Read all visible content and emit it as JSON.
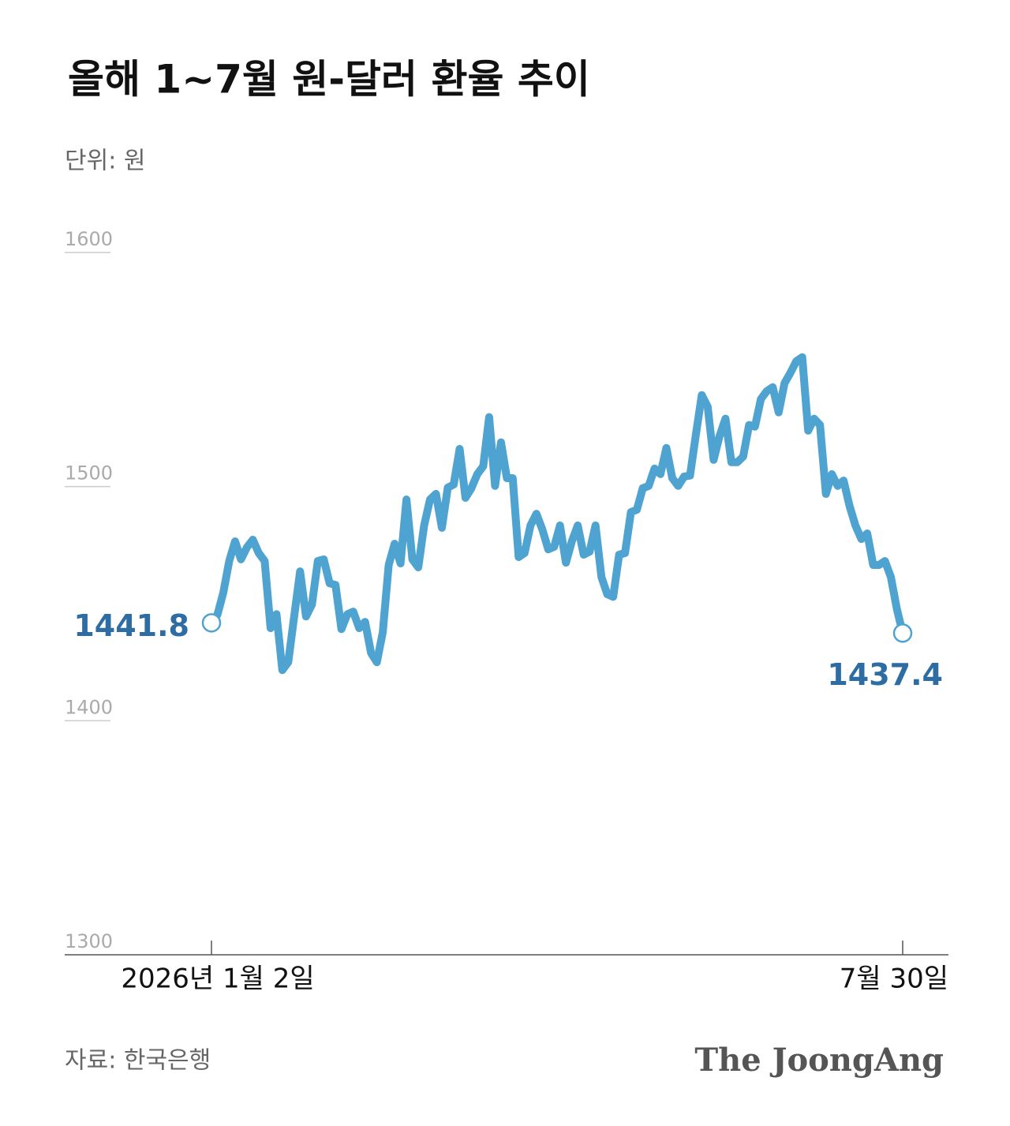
{
  "chart_data": {
    "type": "line",
    "title": "올해 1~7월 원-달러 환율 추이",
    "subtitle": "단위: 원",
    "source": "자료: 한국은행",
    "brand": "The JoongAng",
    "categories": [
      "2026년 1월 2일",
      null,
      null,
      null,
      null,
      null,
      null,
      null,
      null,
      null,
      null,
      null,
      null,
      null,
      null,
      null,
      null,
      null,
      null,
      null,
      null,
      null,
      null,
      null,
      null,
      null,
      null,
      null,
      null,
      null,
      null,
      null,
      null,
      null,
      null,
      null,
      null,
      null,
      null,
      null,
      null,
      null,
      null,
      null,
      null,
      null,
      null,
      null,
      null,
      null,
      null,
      null,
      null,
      null,
      null,
      null,
      null,
      null,
      null,
      null,
      null,
      null,
      null,
      null,
      null,
      null,
      null,
      null,
      null,
      null,
      null,
      null,
      null,
      null,
      null,
      null,
      null,
      null,
      null,
      null,
      null,
      null,
      null,
      null,
      null,
      null,
      null,
      null,
      null,
      null,
      null,
      null,
      null,
      null,
      null,
      null,
      null,
      null,
      null,
      null,
      null,
      null,
      null,
      null,
      null,
      null,
      null,
      null,
      null,
      null,
      null,
      null,
      null,
      null,
      null,
      null,
      null,
      "7월 30일"
    ],
    "series": [
      {
        "name": "원-달러 환율",
        "color": "#4fa3d1",
        "values": [
          1441.8,
          1445.2,
          1454.7,
          1468.2,
          1476.6,
          1468.9,
          1474,
          1477.3,
          1471.6,
          1468.2,
          1439.5,
          1445.5,
          1421.6,
          1425,
          1444.5,
          1463.8,
          1444.5,
          1449.6,
          1468.2,
          1468.9,
          1458.7,
          1458,
          1439.1,
          1445.5,
          1446.6,
          1439.5,
          1442.2,
          1429,
          1425,
          1437.8,
          1466.5,
          1475.6,
          1467.2,
          1494.5,
          1468.9,
          1465.5,
          1483.4,
          1494.5,
          1496.9,
          1482.4,
          1499.6,
          1500.9,
          1516.1,
          1495.2,
          1499.3,
          1505.3,
          1508.7,
          1529.7,
          1500.3,
          1518.9,
          1503.6,
          1503.6,
          1469.9,
          1471.6,
          1483.4,
          1488.4,
          1481.7,
          1473.2,
          1474.3,
          1483.4,
          1467.5,
          1476.6,
          1483.4,
          1470.9,
          1472.2,
          1483.4,
          1461.4,
          1454,
          1452.9,
          1470.9,
          1471.6,
          1489.1,
          1490.1,
          1499.3,
          1500.3,
          1507.7,
          1505.3,
          1516.5,
          1503.6,
          1500.3,
          1504.3,
          1504.7,
          1522.2,
          1539.1,
          1534.1,
          1511.4,
          1521.6,
          1529,
          1510.4,
          1510.4,
          1512.8,
          1526.3,
          1525.6,
          1537.4,
          1540.8,
          1542.5,
          1531.7,
          1544.2,
          1548.6,
          1553.6,
          1555.3,
          1523.9,
          1529,
          1526.3,
          1496.9,
          1505.3,
          1500.3,
          1502.6,
          1491.8,
          1483.4,
          1477.6,
          1480,
          1466.5,
          1466.5,
          1468.2,
          1461.4,
          1447.9,
          1437.4
        ]
      }
    ],
    "ylim": [
      1300,
      1600
    ],
    "yticks": [
      1300,
      1400,
      1500,
      1600
    ],
    "grid": false
  }
}
